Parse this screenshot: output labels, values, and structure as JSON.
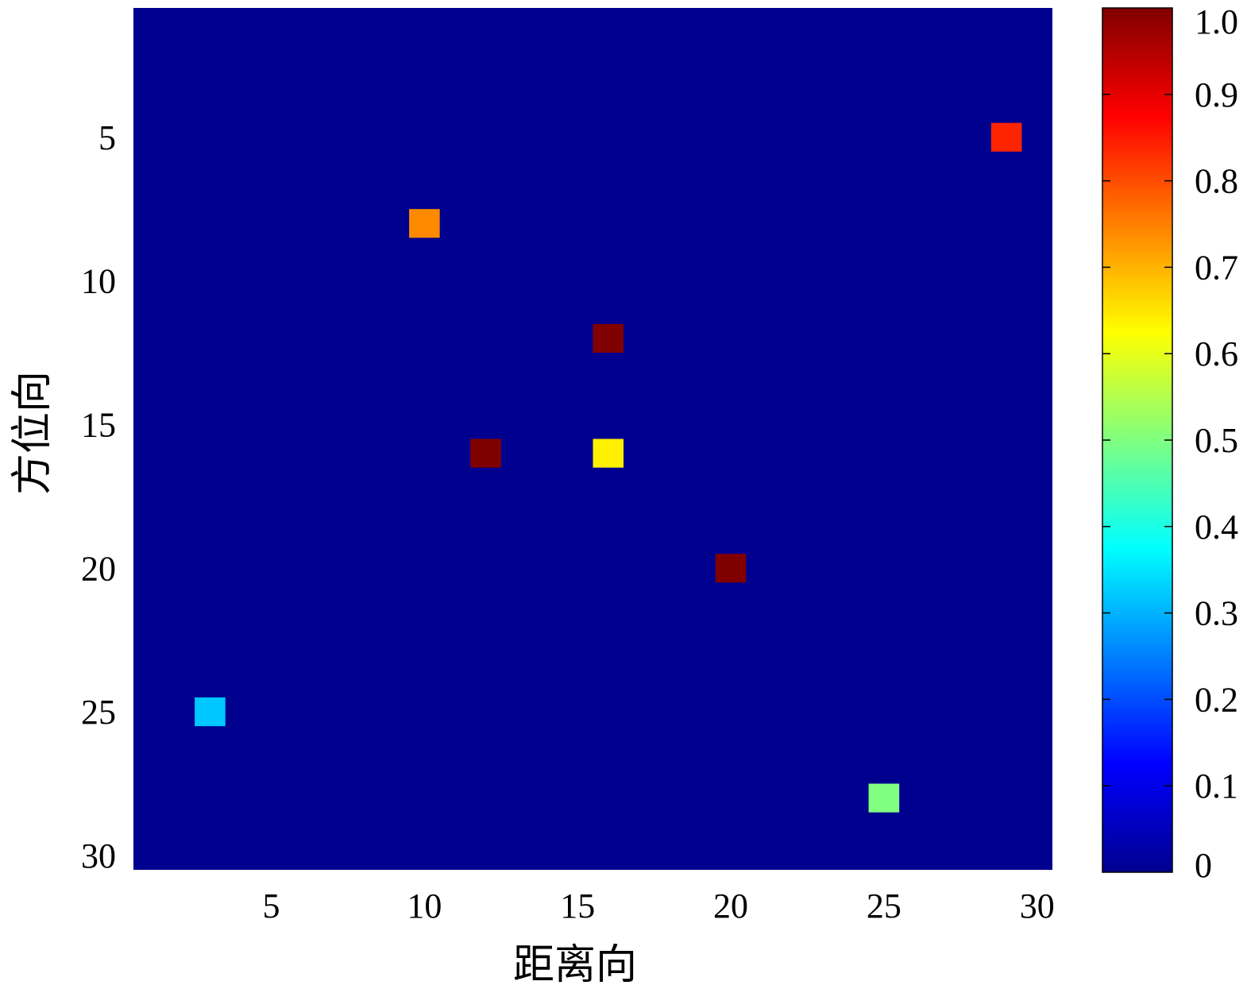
{
  "chart_data": {
    "type": "heatmap",
    "xlabel": "距离向",
    "ylabel": "方位向",
    "xlim": [
      0.5,
      30.5
    ],
    "ylim": [
      0.5,
      30.5
    ],
    "y_reversed": true,
    "xticks": [
      "5",
      "10",
      "15",
      "20",
      "25",
      "30"
    ],
    "yticks": [
      "5",
      "10",
      "15",
      "20",
      "25",
      "30"
    ],
    "background_value": 0,
    "cells": [
      {
        "x": 29,
        "y": 5,
        "value": 0.84
      },
      {
        "x": 10,
        "y": 8,
        "value": 0.74
      },
      {
        "x": 16,
        "y": 12,
        "value": 1.0
      },
      {
        "x": 12,
        "y": 16,
        "value": 1.0
      },
      {
        "x": 16,
        "y": 16,
        "value": 0.64
      },
      {
        "x": 20,
        "y": 20,
        "value": 1.0
      },
      {
        "x": 3,
        "y": 25,
        "value": 0.32
      },
      {
        "x": 25,
        "y": 28,
        "value": 0.5
      }
    ],
    "colorbar": {
      "colormap": "jet",
      "range": [
        0,
        1
      ],
      "tick_labels": [
        "0",
        "0.1",
        "0.2",
        "0.3",
        "0.4",
        "0.5",
        "0.6",
        "0.7",
        "0.8",
        "0.9",
        "1.0"
      ]
    }
  }
}
